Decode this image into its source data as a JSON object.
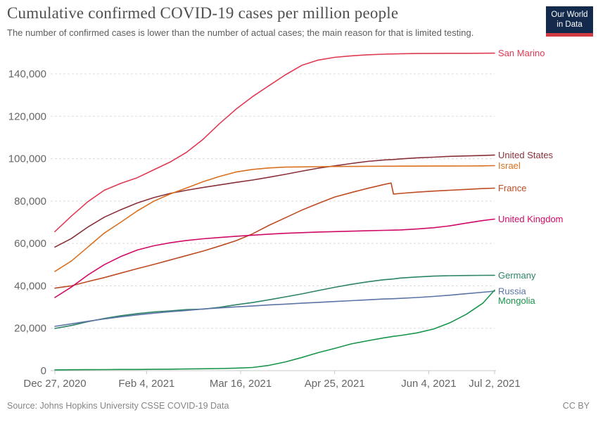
{
  "header": {
    "title": "Cumulative confirmed COVID-19 cases per million people",
    "subtitle": "The number of confirmed cases is lower than the number of actual cases; the main reason for that is limited testing.",
    "logo": {
      "line1": "Our World",
      "line2": "in Data",
      "bg_color": "#132a4d",
      "accent_color": "#d13b3f"
    }
  },
  "footer": {
    "source": "Source: Johns Hopkins University CSSE COVID-19 Data",
    "license": "CC BY"
  },
  "chart_data": {
    "type": "line",
    "title": "Cumulative confirmed COVID-19 cases per million people",
    "xlabel": "",
    "ylabel": "",
    "grid": "dashed-horizontal",
    "legend_position": "right-of-line-ends",
    "x_start_date": "Dec 27, 2020",
    "x_end_date": "Jul 2, 2021",
    "xlim_days": [
      0,
      187
    ],
    "ylim": [
      0,
      150000
    ],
    "y_ticks": [
      0,
      20000,
      40000,
      60000,
      80000,
      100000,
      120000,
      140000
    ],
    "x_ticks": [
      {
        "day": 0,
        "label": "Dec 27, 2020"
      },
      {
        "day": 39,
        "label": "Feb 4, 2021"
      },
      {
        "day": 79,
        "label": "Mar 16, 2021"
      },
      {
        "day": 119,
        "label": "Apr 25, 2021"
      },
      {
        "day": 159,
        "label": "Jun 4, 2021"
      },
      {
        "day": 187,
        "label": "Jul 2, 2021"
      }
    ],
    "x_days": [
      0,
      7,
      14,
      21,
      28,
      35,
      42,
      49,
      56,
      63,
      70,
      77,
      84,
      91,
      98,
      105,
      112,
      119,
      126,
      133,
      140,
      143,
      144,
      147,
      154,
      161,
      168,
      175,
      182,
      187
    ],
    "series": [
      {
        "name": "San Marino",
        "color": "#de3a52",
        "values": [
          65600,
          72900,
          79700,
          85100,
          88300,
          91000,
          94700,
          98400,
          103000,
          109100,
          116500,
          123300,
          129200,
          134400,
          139500,
          144000,
          146500,
          147800,
          148500,
          149000,
          149300,
          149400,
          149400,
          149500,
          149600,
          149650,
          149700,
          149700,
          149720,
          149750
        ]
      },
      {
        "name": "United States",
        "color": "#883039",
        "values": [
          58300,
          62300,
          67700,
          72400,
          75900,
          79100,
          81600,
          83600,
          85100,
          86400,
          87600,
          88800,
          89900,
          91200,
          92600,
          94100,
          95500,
          96600,
          97700,
          98700,
          99400,
          99550,
          99600,
          99900,
          100400,
          100700,
          101100,
          101300,
          101500,
          101700
        ]
      },
      {
        "name": "Israel",
        "color": "#d9701f",
        "values": [
          46800,
          51700,
          58300,
          64900,
          70000,
          75300,
          79900,
          83300,
          86200,
          89100,
          91600,
          93700,
          94900,
          95600,
          96000,
          96100,
          96200,
          96300,
          96350,
          96400,
          96430,
          96440,
          96450,
          96460,
          96480,
          96500,
          96520,
          96550,
          96600,
          96700
        ]
      },
      {
        "name": "France",
        "color": "#be4b23",
        "values": [
          38900,
          40000,
          42000,
          43900,
          46000,
          48100,
          50100,
          52200,
          54300,
          56400,
          58800,
          61300,
          64500,
          68500,
          72100,
          75700,
          78900,
          81900,
          84000,
          86000,
          87800,
          88500,
          83300,
          83600,
          84200,
          84700,
          85100,
          85500,
          85900,
          86100
        ]
      },
      {
        "name": "United Kingdom",
        "color": "#cf0a66",
        "values": [
          34500,
          39400,
          45100,
          50000,
          53800,
          56900,
          58900,
          60300,
          61400,
          62200,
          62800,
          63400,
          63900,
          64400,
          64800,
          65100,
          65400,
          65600,
          65800,
          66000,
          66200,
          66250,
          66280,
          66400,
          66800,
          67400,
          68300,
          69600,
          70800,
          71500
        ]
      },
      {
        "name": "Germany",
        "color": "#2c8465",
        "values": [
          19900,
          21300,
          23100,
          24600,
          25900,
          26900,
          27700,
          28200,
          28800,
          29000,
          29900,
          31100,
          32100,
          33400,
          34800,
          36200,
          37800,
          39300,
          40700,
          41900,
          42900,
          43150,
          43250,
          43700,
          44200,
          44600,
          44800,
          44900,
          44950,
          45000
        ]
      },
      {
        "name": "Russia",
        "color": "#5c74a6",
        "values": [
          20900,
          22100,
          23300,
          24400,
          25400,
          26300,
          27100,
          27800,
          28400,
          29100,
          29600,
          30100,
          30500,
          31000,
          31400,
          31800,
          32200,
          32600,
          33000,
          33400,
          33800,
          33900,
          33950,
          34100,
          34500,
          35000,
          35600,
          36300,
          37000,
          37500
        ]
      },
      {
        "name": "Mongolia",
        "color": "#18954b",
        "values": [
          380,
          420,
          450,
          500,
          550,
          560,
          620,
          700,
          800,
          900,
          1000,
          1200,
          1500,
          2500,
          4100,
          6200,
          8500,
          10500,
          12600,
          14100,
          15500,
          16000,
          16200,
          16600,
          17800,
          19600,
          22600,
          26600,
          31800,
          38000
        ]
      }
    ]
  }
}
